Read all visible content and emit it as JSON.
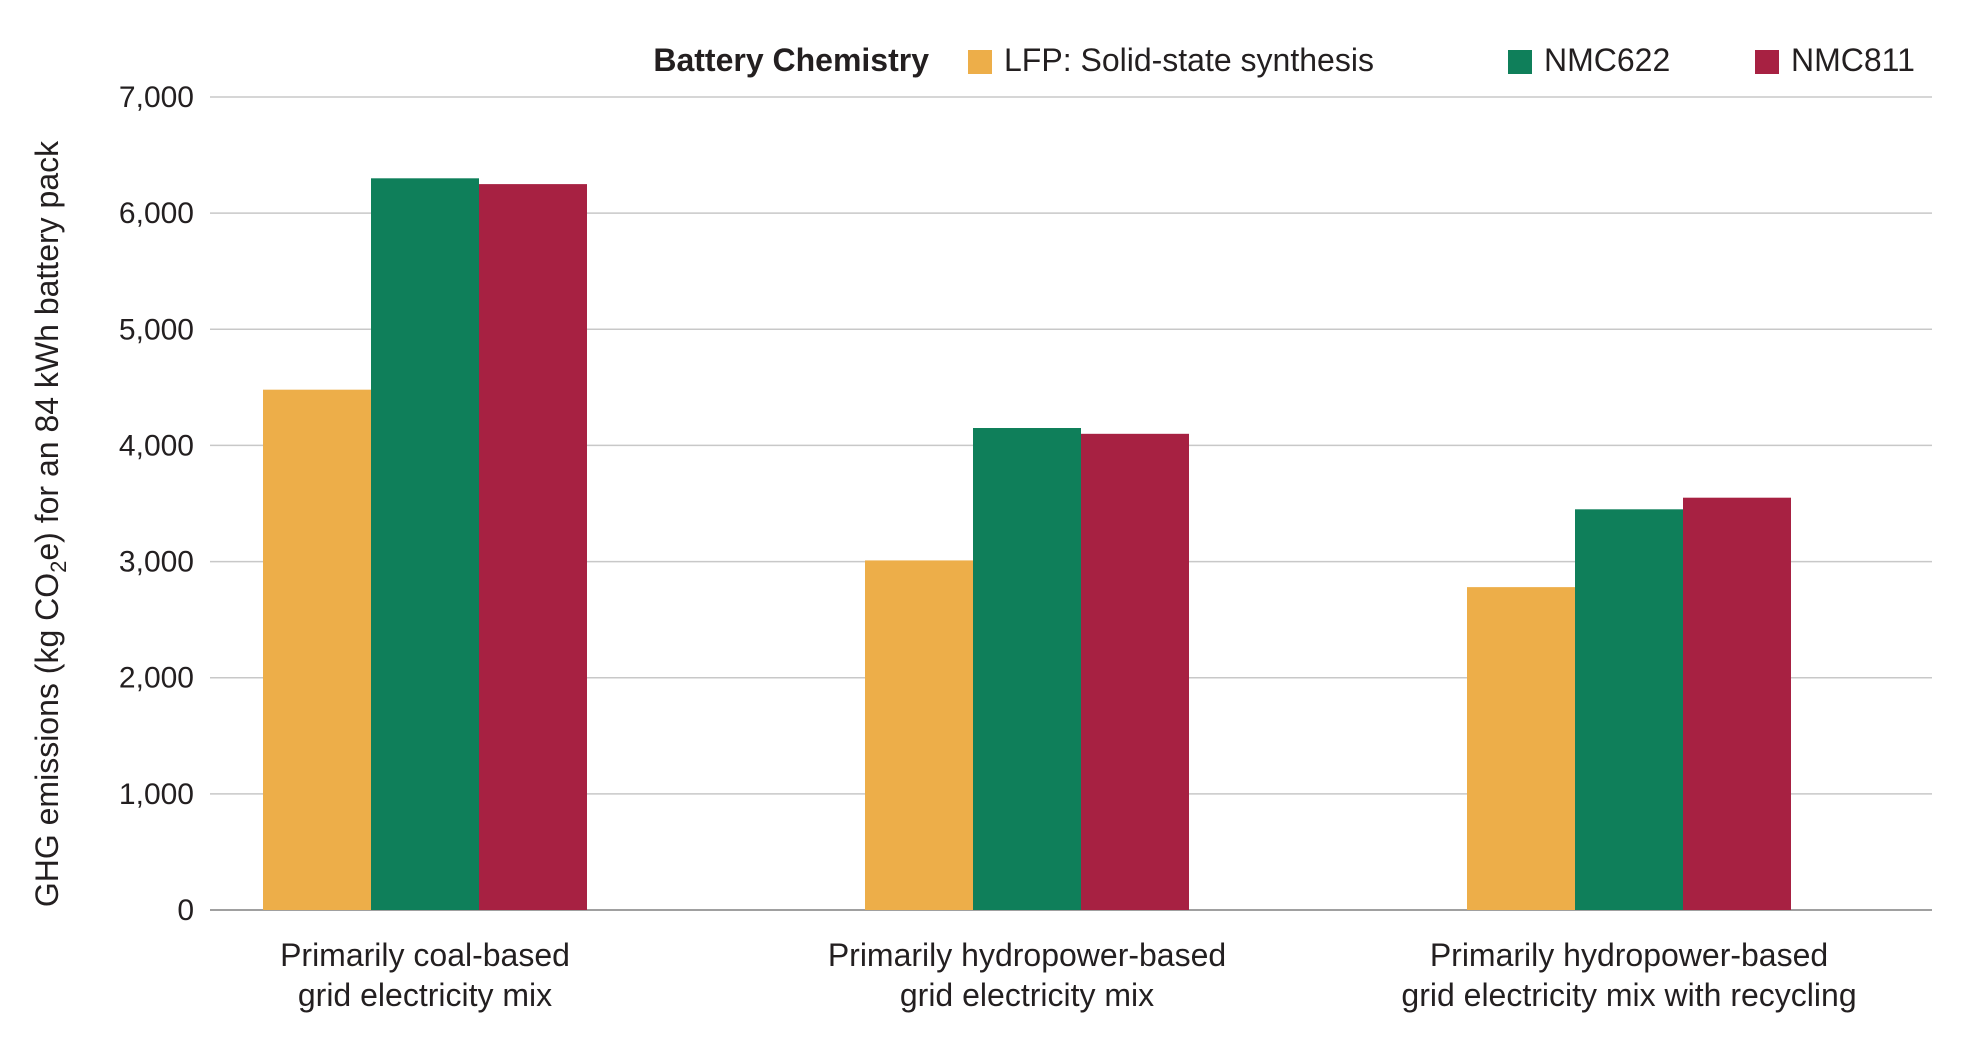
{
  "chart_data": {
    "type": "bar",
    "title": "",
    "xlabel": "",
    "ylabel_parts": [
      "GHG emissions (kg CO",
      "2",
      "e) for an 84 kWh battery pack"
    ],
    "ylim": [
      0,
      7000
    ],
    "yticks": [
      0,
      1000,
      2000,
      3000,
      4000,
      5000,
      6000,
      7000
    ],
    "ytick_labels": [
      "0",
      "1,000",
      "2,000",
      "3,000",
      "4,000",
      "5,000",
      "6,000",
      "7,000"
    ],
    "grid": true,
    "legend": {
      "title": "Battery Chemistry",
      "placement": "top-right"
    },
    "categories": [
      [
        "Primarily coal-based",
        "grid electricity mix"
      ],
      [
        "Primarily hydropower-based",
        "grid electricity mix"
      ],
      [
        "Primarily hydropower-based",
        "grid electricity mix with recycling"
      ]
    ],
    "series": [
      {
        "name": "LFP: Solid-state synthesis",
        "color": "#edae49",
        "values": [
          4480,
          3010,
          2780
        ]
      },
      {
        "name": "NMC622",
        "color": "#0f7f5a",
        "values": [
          6300,
          4150,
          3450
        ]
      },
      {
        "name": "NMC811",
        "color": "#a72142",
        "values": [
          6250,
          4100,
          3550
        ]
      }
    ]
  }
}
